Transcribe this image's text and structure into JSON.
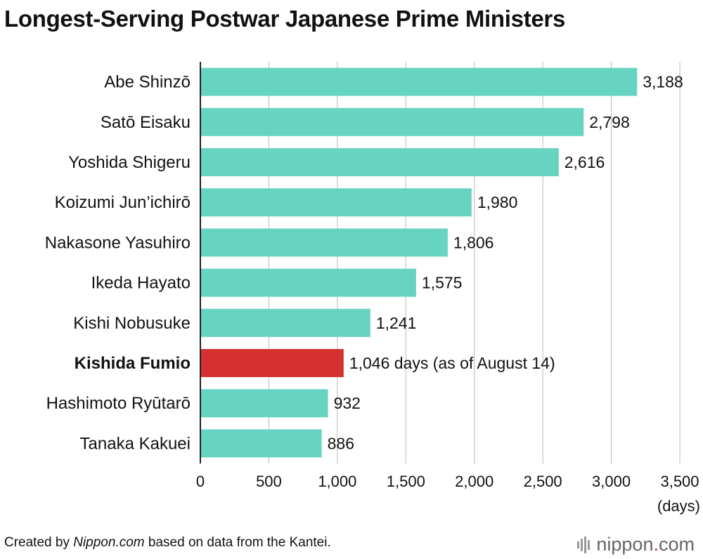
{
  "title": "Longest-Serving Postwar Japanese Prime Ministers",
  "colors": {
    "bar": "#66d4c0",
    "highlight": "#d63131",
    "grid": "#b8b8b8",
    "axis": "#222222"
  },
  "chart_data": {
    "type": "bar",
    "orientation": "horizontal",
    "title": "Longest-Serving Postwar Japanese Prime Ministers",
    "categories": [
      "Abe Shinzō",
      "Satō Eisaku",
      "Yoshida Shigeru",
      "Koizumi Jun’ichirō",
      "Nakasone Yasuhiro",
      "Ikeda Hayato",
      "Kishi Nobusuke",
      "Kishida Fumio",
      "Hashimoto Ryūtarō",
      "Tanaka Kakuei"
    ],
    "values": [
      3188,
      2798,
      2616,
      1980,
      1806,
      1575,
      1241,
      1046,
      932,
      886
    ],
    "value_labels": [
      "3,188",
      "2,798",
      "2,616",
      "1,980",
      "1,806",
      "1,575",
      "1,241",
      "1,046 days (as of August 14)",
      "932",
      "886"
    ],
    "highlight": [
      "Kishida Fumio"
    ],
    "x_ticks": [
      0,
      500,
      1000,
      1500,
      2000,
      2500,
      3000,
      3500
    ],
    "x_tick_labels": [
      "0",
      "500",
      "1,000",
      "1,500",
      "2,000",
      "2,500",
      "3,000",
      "3,500"
    ],
    "xlim": [
      0,
      3500
    ],
    "xlabel": "(days)",
    "ylabel": "",
    "grid": true,
    "legend": null
  },
  "footer": {
    "prefix": "Created by ",
    "site": "Nippon.com",
    "suffix": " based on data from the Kantei."
  },
  "logo": {
    "part1": "nippon",
    "dot": ".",
    "part2": "com"
  }
}
